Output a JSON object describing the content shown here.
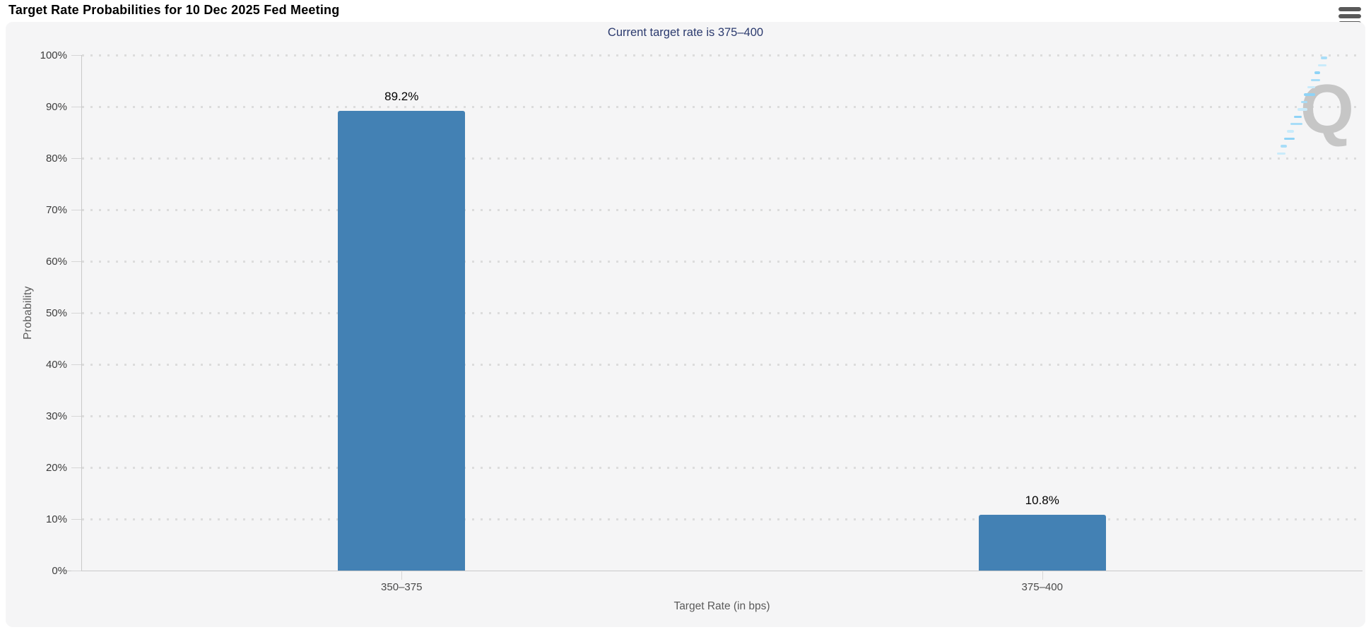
{
  "header": {
    "title": "Target Rate Probabilities for 10 Dec 2025 Fed Meeting",
    "menu_icon": "hamburger-menu-icon"
  },
  "chart_data": {
    "type": "bar",
    "title": "Target Rate Probabilities for 10 Dec 2025 Fed Meeting",
    "subtitle": "Current target rate is 375–400",
    "categories": [
      "350–375",
      "375–400"
    ],
    "values": [
      89.2,
      10.8
    ],
    "value_labels": [
      "89.2%",
      "10.8%"
    ],
    "xlabel": "Target Rate (in bps)",
    "ylabel": "Probability",
    "ylim": [
      0,
      100
    ],
    "ytick_step": 10,
    "ytick_labels": [
      "0%",
      "10%",
      "20%",
      "30%",
      "40%",
      "50%",
      "60%",
      "70%",
      "80%",
      "90%",
      "100%"
    ],
    "grid": "horizontal-dotted",
    "legend": "none",
    "bar_color": "#4381b4"
  },
  "watermark": {
    "letter": "Q"
  },
  "colors": {
    "page_bg": "#ffffff",
    "panel_bg": "#f5f5f6",
    "subtitle_text": "#2b3a6e",
    "bar": "#4381b4",
    "grid_dot": "#dcdcdc",
    "axis_line": "#c9c9c9",
    "watermark_gray": "#c6c6c6",
    "watermark_blue": "#a8ddf8"
  }
}
